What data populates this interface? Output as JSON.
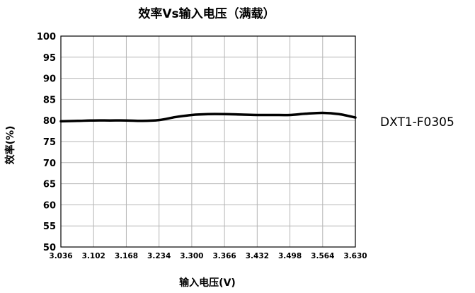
{
  "chart_data": {
    "type": "line",
    "title": "效率Vs输入电压（满载）",
    "xlabel": "输入电压(V)",
    "ylabel": "效率(%)",
    "x_ticks": [
      "3.036",
      "3.102",
      "3.168",
      "3.234",
      "3.300",
      "3.366",
      "3.432",
      "3.498",
      "3.564",
      "3.630"
    ],
    "y_ticks": [
      "50",
      "55",
      "60",
      "65",
      "70",
      "75",
      "80",
      "85",
      "90",
      "95",
      "100"
    ],
    "xlim": [
      3.036,
      3.63
    ],
    "ylim": [
      50,
      100
    ],
    "grid": true,
    "series": [
      {
        "name": "DXT1-F0305",
        "color": "#000000",
        "x": [
          3.036,
          3.07,
          3.102,
          3.135,
          3.168,
          3.2,
          3.234,
          3.267,
          3.3,
          3.333,
          3.366,
          3.4,
          3.432,
          3.465,
          3.498,
          3.53,
          3.564,
          3.597,
          3.63
        ],
        "y": [
          79.8,
          79.9,
          80.0,
          80.0,
          80.0,
          79.9,
          80.1,
          80.8,
          81.3,
          81.5,
          81.5,
          81.4,
          81.3,
          81.3,
          81.3,
          81.6,
          81.8,
          81.5,
          80.7
        ]
      }
    ]
  }
}
